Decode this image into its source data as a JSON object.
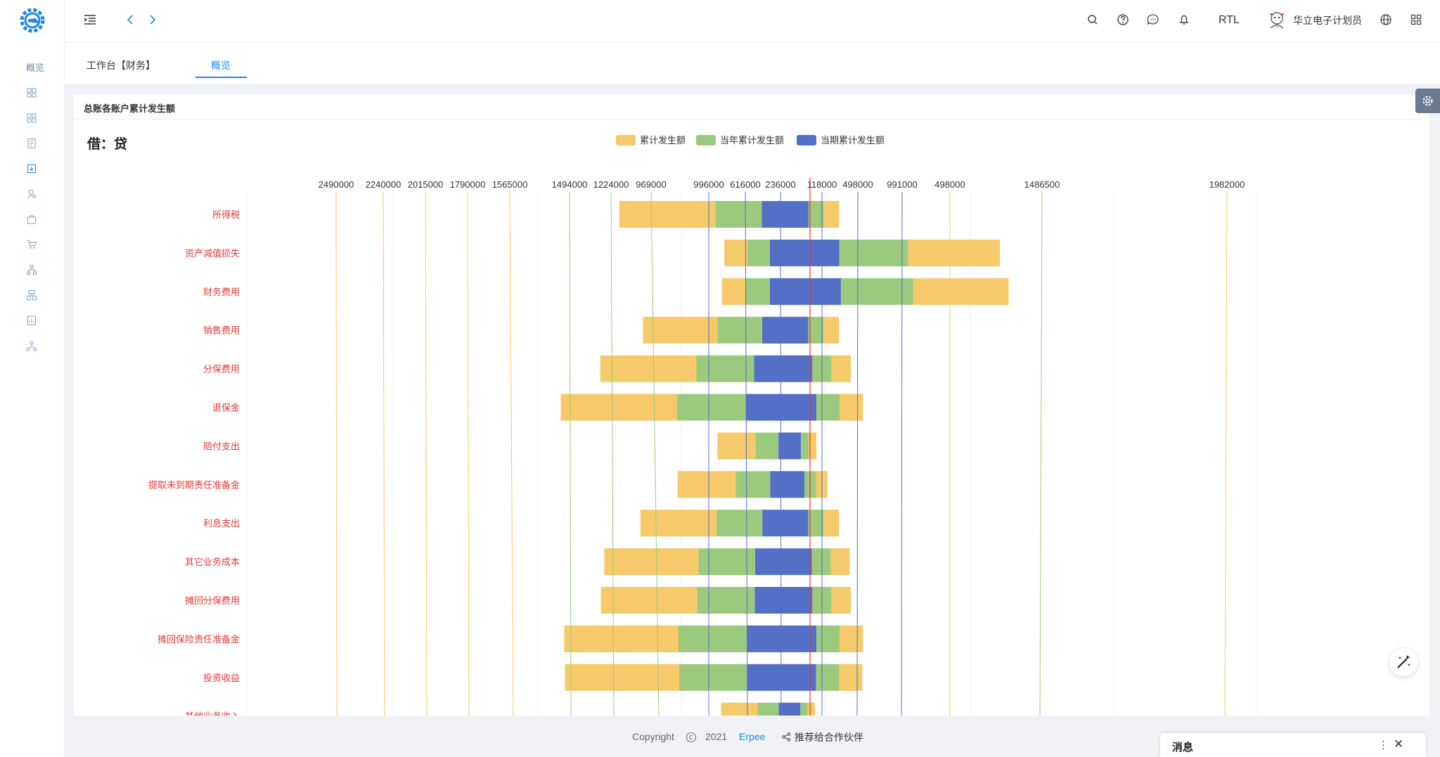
{
  "sidebar": {
    "logo_icon": "gear-cloud-logo-icon",
    "label": "概览",
    "icons": [
      "grid-icon",
      "grid-icon",
      "document-icon",
      "download-box-icon",
      "user-search-icon",
      "bag-icon",
      "cart-icon",
      "org-chart-icon",
      "hierarchy-icon",
      "report-icon",
      "network-icon"
    ]
  },
  "header": {
    "icons_left": [
      "menu-toggle-icon",
      "chevron-left-icon",
      "chevron-right-icon"
    ],
    "icons_right": [
      "search-icon",
      "help-icon",
      "chat-icon",
      "bell-icon"
    ],
    "rtl_label": "RTL",
    "user_name": "华立电子计划员",
    "extra_icons": [
      "globe-icon",
      "apps-grid-icon"
    ]
  },
  "tabs": [
    {
      "label": "工作台【财务】"
    },
    {
      "label": "概览"
    }
  ],
  "card": {
    "title": "总账各账户累计发生额"
  },
  "chart_data": {
    "type": "bar",
    "title": "借：贷",
    "orientation": "horizontal-stacked-bidirectional",
    "legend": [
      "累计发生额",
      "当年累计发生额",
      "当期累计发生额"
    ],
    "legend_position": "top-center",
    "colors": [
      "#f6c96a",
      "#9bca7e",
      "#5470c6"
    ],
    "top_axis_ticks": [
      "2490000",
      "2240000",
      "2015000",
      "1790000",
      "1565000",
      "1494000",
      "1224000",
      "969000",
      "996000",
      "616000",
      "236000",
      "118000",
      "498000",
      "991000",
      "498000",
      "1486500",
      "1982000"
    ],
    "categories": [
      "所得税",
      "资产减值损失",
      "财务费用",
      "销售费用",
      "分保费用",
      "退保金",
      "赔付支出",
      "提取未到期责任准备金",
      "利息支出",
      "其它业务成本",
      "摊回分保费用",
      "摊回保险责任准备金",
      "投资收益",
      "其他业务收入"
    ],
    "debit": {
      "累计发生额": [
        530000,
        126000,
        130000,
        410000,
        530000,
        640000,
        210000,
        320000,
        420000,
        520000,
        530000,
        630000,
        630000,
        200000
      ],
      "当年累计发生额": [
        255000,
        125000,
        135000,
        247000,
        317000,
        383000,
        126000,
        190000,
        252000,
        311000,
        318000,
        378000,
        376000,
        117000
      ],
      "当期累计发生额": [
        173000,
        128000,
        128000,
        171000,
        216000,
        258000,
        81000,
        127000,
        170000,
        210000,
        212000,
        254000,
        252000,
        80000
      ]
    },
    "credit": {
      "累计发生额": [
        84000,
        505000,
        527000,
        84000,
        106000,
        128000,
        43000,
        63000,
        84000,
        104000,
        106000,
        128000,
        127000,
        40000
      ],
      "当年累计发生额": [
        84000,
        381000,
        397000,
        84000,
        106000,
        128000,
        43000,
        63000,
        84000,
        104000,
        106000,
        128000,
        127000,
        40000
      ],
      "当期累计发生额": [
        85000,
        254000,
        264000,
        84000,
        106000,
        128000,
        43000,
        63000,
        84000,
        104000,
        106000,
        128000,
        127000,
        40000
      ]
    }
  },
  "footer": {
    "copyright": "Copyright",
    "year": "2021",
    "brand": "Erpee",
    "partner": "推荐给合作伙伴"
  },
  "message_panel": {
    "title": "消息",
    "more": "⋮",
    "close": "✕"
  }
}
